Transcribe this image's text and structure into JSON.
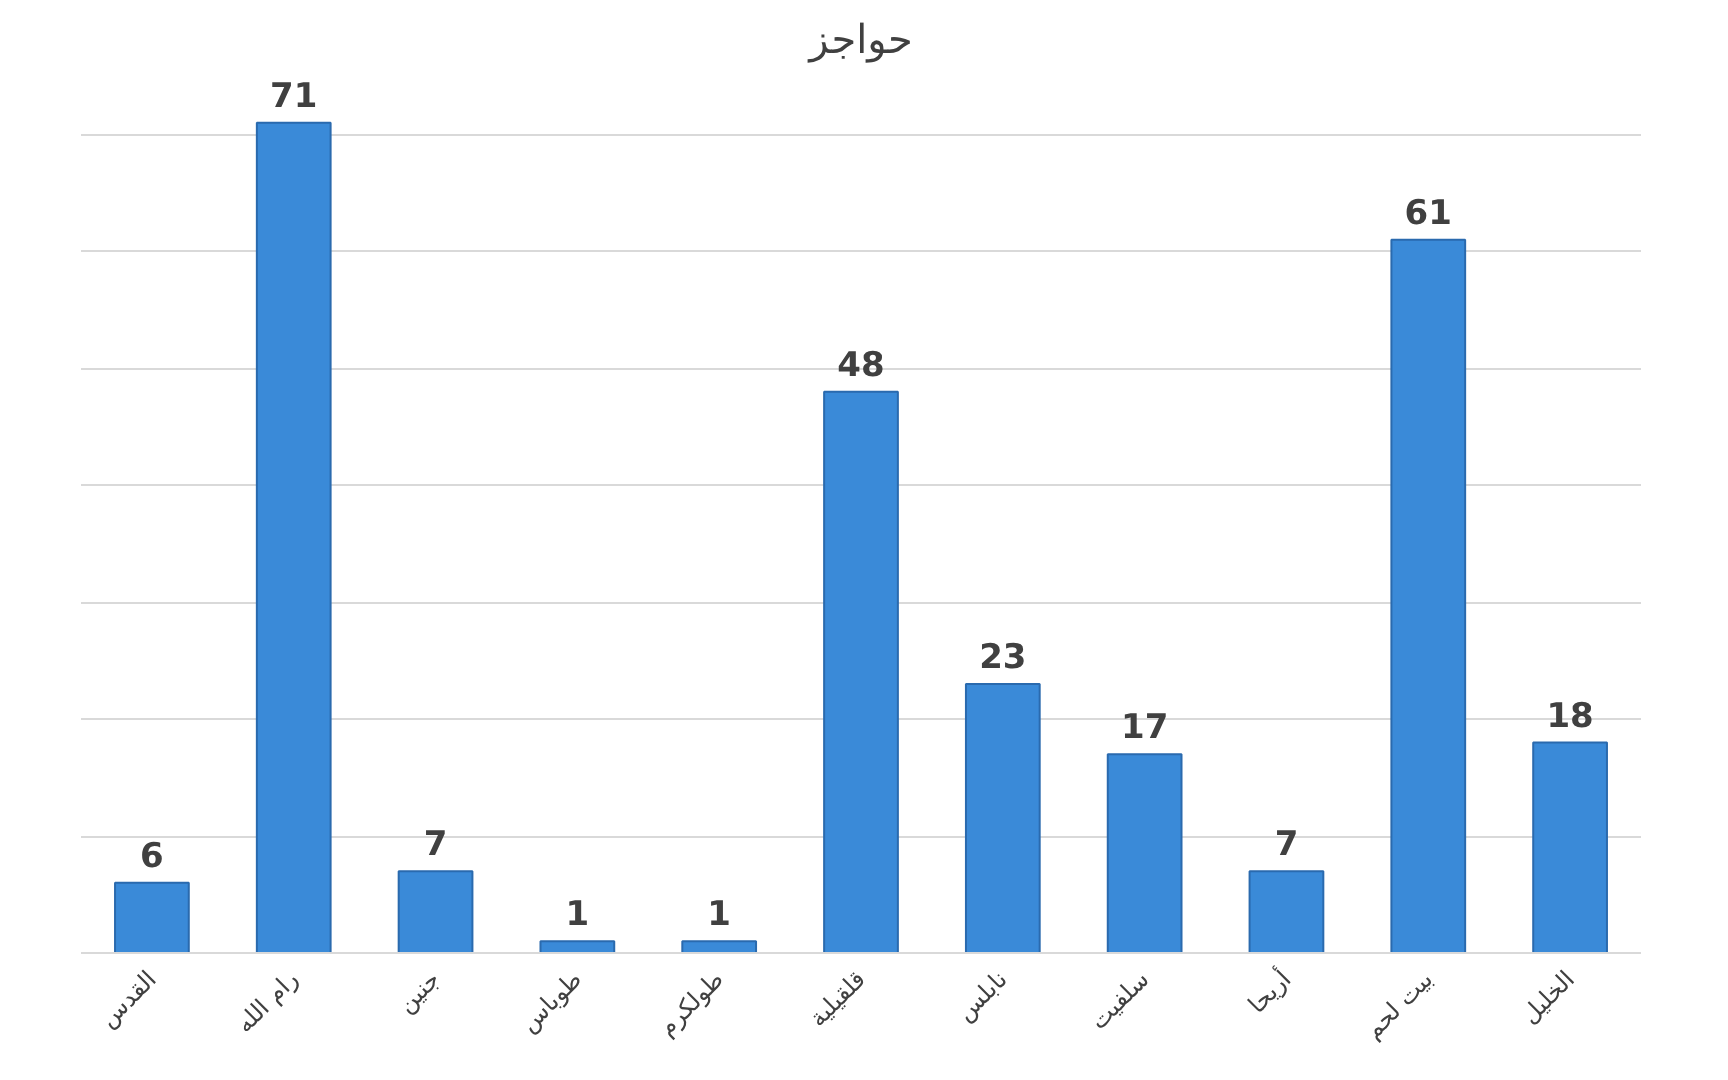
{
  "chart_data": {
    "type": "bar",
    "title": "حواجز",
    "categories": [
      "القدس",
      "رام الله",
      "جنين",
      "طوباس",
      "طولكرم",
      "قلقيلية",
      "نابلس",
      "سلفيت",
      "أريحا",
      "بيت لحم",
      "الخليل"
    ],
    "values": [
      6,
      71,
      7,
      1,
      1,
      48,
      23,
      17,
      7,
      61,
      18
    ],
    "color": "#3a8ad8",
    "yticks": [
      {
        "value": 0,
        "label": null
      },
      {
        "value": 10,
        "label": null
      },
      {
        "value": 20,
        "label": null
      },
      {
        "value": 30,
        "label": null
      },
      {
        "value": 40,
        "label": null
      },
      {
        "value": 50,
        "label": null
      },
      {
        "value": 60,
        "label": null
      },
      {
        "value": 70,
        "label": null
      }
    ],
    "tick_labels": "x",
    "grid": "y",
    "data_labels": true
  }
}
